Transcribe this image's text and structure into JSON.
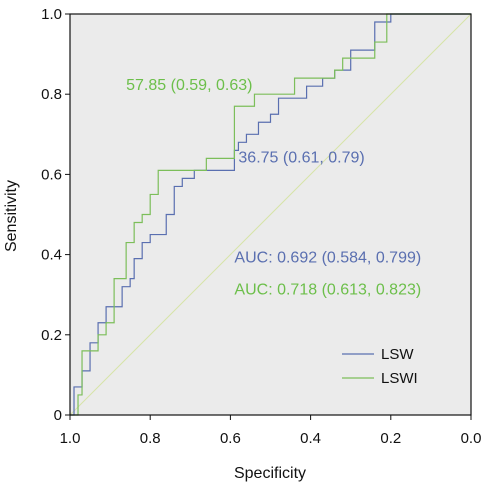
{
  "chart_data": {
    "type": "line",
    "xlabel": "Specificity",
    "ylabel": "Sensitivity",
    "xlim": [
      1.0,
      0.0
    ],
    "ylim": [
      0,
      1.0
    ],
    "x_ticks": [
      "1.0",
      "0.8",
      "0.6",
      "0.4",
      "0.2",
      "0.0"
    ],
    "x_tick_values": [
      1.0,
      0.8,
      0.6,
      0.4,
      0.2,
      0.0
    ],
    "y_ticks": [
      "0",
      "0.2",
      "0.4",
      "0.6",
      "0.8",
      "1.0"
    ],
    "y_tick_values": [
      0,
      0.2,
      0.4,
      0.6,
      0.8,
      1.0
    ],
    "grid": false,
    "plot_background": "#ebebeb",
    "reference_color": "#d6e3a8",
    "legend_position": "bottom-right",
    "series": [
      {
        "name": "LSW",
        "color": "#5a6fb0",
        "points": [
          [
            1.0,
            0.0
          ],
          [
            0.99,
            0.0
          ],
          [
            0.99,
            0.07
          ],
          [
            0.97,
            0.07
          ],
          [
            0.97,
            0.11
          ],
          [
            0.95,
            0.11
          ],
          [
            0.95,
            0.18
          ],
          [
            0.93,
            0.18
          ],
          [
            0.93,
            0.23
          ],
          [
            0.91,
            0.23
          ],
          [
            0.91,
            0.27
          ],
          [
            0.87,
            0.27
          ],
          [
            0.87,
            0.32
          ],
          [
            0.85,
            0.32
          ],
          [
            0.85,
            0.34
          ],
          [
            0.84,
            0.34
          ],
          [
            0.84,
            0.39
          ],
          [
            0.82,
            0.39
          ],
          [
            0.82,
            0.43
          ],
          [
            0.8,
            0.43
          ],
          [
            0.8,
            0.45
          ],
          [
            0.76,
            0.45
          ],
          [
            0.76,
            0.5
          ],
          [
            0.74,
            0.5
          ],
          [
            0.74,
            0.57
          ],
          [
            0.72,
            0.57
          ],
          [
            0.72,
            0.59
          ],
          [
            0.69,
            0.59
          ],
          [
            0.69,
            0.61
          ],
          [
            0.59,
            0.61
          ],
          [
            0.59,
            0.66
          ],
          [
            0.58,
            0.66
          ],
          [
            0.58,
            0.68
          ],
          [
            0.56,
            0.68
          ],
          [
            0.56,
            0.7
          ],
          [
            0.53,
            0.7
          ],
          [
            0.53,
            0.73
          ],
          [
            0.5,
            0.73
          ],
          [
            0.5,
            0.75
          ],
          [
            0.48,
            0.75
          ],
          [
            0.48,
            0.79
          ],
          [
            0.41,
            0.79
          ],
          [
            0.41,
            0.82
          ],
          [
            0.37,
            0.82
          ],
          [
            0.37,
            0.84
          ],
          [
            0.34,
            0.84
          ],
          [
            0.34,
            0.86
          ],
          [
            0.3,
            0.86
          ],
          [
            0.3,
            0.91
          ],
          [
            0.24,
            0.91
          ],
          [
            0.24,
            0.98
          ],
          [
            0.2,
            0.98
          ],
          [
            0.2,
            1.0
          ],
          [
            0.0,
            1.0
          ]
        ]
      },
      {
        "name": "LSWI",
        "color": "#7cbe5a",
        "points": [
          [
            1.0,
            0.0
          ],
          [
            0.98,
            0.0
          ],
          [
            0.98,
            0.05
          ],
          [
            0.97,
            0.05
          ],
          [
            0.97,
            0.16
          ],
          [
            0.93,
            0.16
          ],
          [
            0.93,
            0.2
          ],
          [
            0.91,
            0.2
          ],
          [
            0.91,
            0.23
          ],
          [
            0.89,
            0.23
          ],
          [
            0.89,
            0.34
          ],
          [
            0.86,
            0.34
          ],
          [
            0.86,
            0.43
          ],
          [
            0.84,
            0.43
          ],
          [
            0.84,
            0.48
          ],
          [
            0.82,
            0.48
          ],
          [
            0.82,
            0.5
          ],
          [
            0.8,
            0.5
          ],
          [
            0.8,
            0.55
          ],
          [
            0.78,
            0.55
          ],
          [
            0.78,
            0.61
          ],
          [
            0.66,
            0.61
          ],
          [
            0.66,
            0.64
          ],
          [
            0.59,
            0.64
          ],
          [
            0.59,
            0.77
          ],
          [
            0.54,
            0.77
          ],
          [
            0.54,
            0.8
          ],
          [
            0.44,
            0.8
          ],
          [
            0.44,
            0.84
          ],
          [
            0.34,
            0.84
          ],
          [
            0.34,
            0.86
          ],
          [
            0.32,
            0.86
          ],
          [
            0.32,
            0.89
          ],
          [
            0.24,
            0.89
          ],
          [
            0.24,
            0.93
          ],
          [
            0.21,
            0.93
          ],
          [
            0.21,
            1.0
          ],
          [
            0.0,
            1.0
          ]
        ]
      }
    ],
    "annotations": [
      {
        "text": "57.85 (0.59, 0.63)",
        "color": "#6cbf4a",
        "x": 0.86,
        "y": 0.81
      },
      {
        "text": "36.75 (0.61, 0.79)",
        "color": "#5a6fb0",
        "x": 0.58,
        "y": 0.63
      },
      {
        "text": "AUC: 0.692 (0.584, 0.799)",
        "color": "#5a6fb0",
        "x": 0.59,
        "y": 0.38
      },
      {
        "text": "AUC: 0.718 (0.613, 0.823)",
        "color": "#6cbf4a",
        "x": 0.59,
        "y": 0.3
      }
    ]
  }
}
